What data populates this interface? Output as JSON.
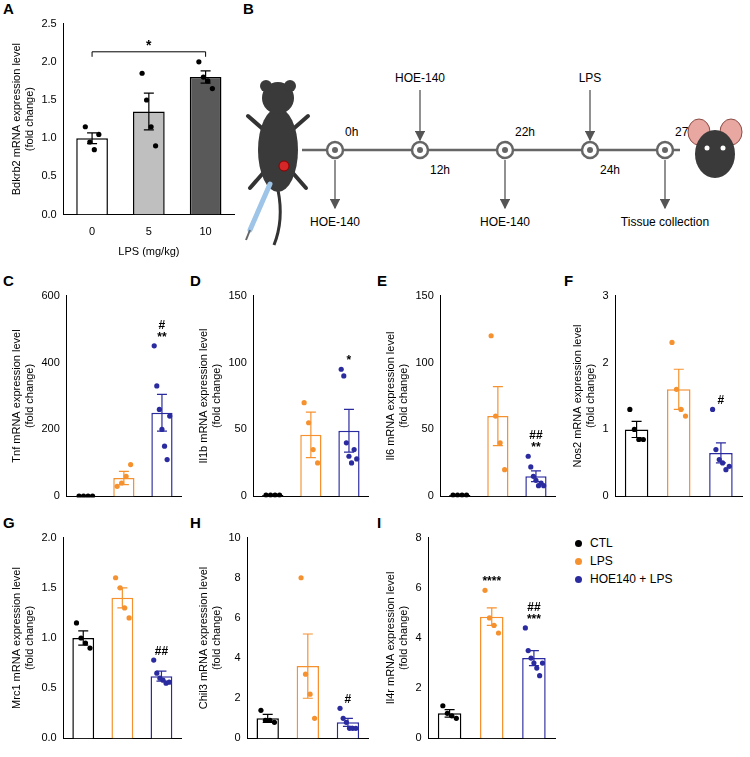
{
  "chart_data": [
    {
      "panel": "A",
      "type": "bar",
      "y_label": [
        "Bdkrb2 mRNA expression level",
        "(fold change)"
      ],
      "x_label": "LPS (mg/kg)",
      "categories": [
        "0",
        "5",
        "10"
      ],
      "values": [
        1.0,
        1.35,
        1.8
      ],
      "errors": [
        0.07,
        0.24,
        0.08
      ],
      "points": [
        [
          1.15,
          0.95,
          0.85,
          1.05
        ],
        [
          1.85,
          1.5,
          1.15,
          0.9
        ],
        [
          2.0,
          1.8,
          1.75,
          1.65
        ]
      ],
      "colors": [
        "#ffffff",
        "#bfbfbf",
        "#595959"
      ],
      "color": "#000000",
      "ylim": [
        0,
        2.5
      ],
      "yticks": [
        {
          "value": 0,
          "label": "0.0"
        },
        0.5,
        {
          "value": 1,
          "label": "1.0"
        },
        1.5,
        {
          "value": 2,
          "label": "2.0"
        },
        2.5
      ],
      "comparison": {
        "groups": [
          "0",
          "10"
        ],
        "text": "*"
      }
    },
    {
      "panel": "C",
      "type": "bar",
      "y_label": [
        "Tnf mRNA expression level",
        "(fold change)"
      ],
      "categories": [
        "CTL",
        "LPS",
        "HOE140 + LPS"
      ],
      "values": [
        1,
        55,
        250
      ],
      "errors": [
        0.3,
        20,
        55
      ],
      "points": [
        [
          1,
          1,
          1,
          1
        ],
        [
          30,
          40,
          60,
          95
        ],
        [
          450,
          330,
          260,
          200,
          150,
          110,
          240
        ]
      ],
      "colors": [
        "#000000",
        "#f5922f",
        "#2b2ba0"
      ],
      "ylim": [
        0,
        600
      ],
      "yticks": [
        0,
        200,
        400,
        600
      ],
      "tick_labels": "y",
      "annotations": [
        {
          "category": "HOE140 + LPS",
          "text": [
            "#",
            "**"
          ]
        }
      ]
    },
    {
      "panel": "D",
      "type": "bar",
      "y_label": [
        "Il1b mRNA expression level",
        "(fold change)"
      ],
      "categories": [
        "CTL",
        "LPS",
        "HOE140 + LPS"
      ],
      "values": [
        1,
        46,
        49
      ],
      "errors": [
        0.2,
        17,
        16
      ],
      "points": [
        [
          1,
          1,
          1,
          1
        ],
        [
          70,
          55,
          35,
          25
        ],
        [
          95,
          90,
          40,
          30,
          25,
          35,
          28
        ]
      ],
      "colors": [
        "#000000",
        "#f5922f",
        "#2b2ba0"
      ],
      "ylim": [
        0,
        150
      ],
      "yticks": [
        0,
        50,
        100,
        150
      ],
      "tick_labels": "y",
      "annotations": [
        {
          "category": "HOE140 + LPS",
          "text": [
            "*"
          ]
        }
      ]
    },
    {
      "panel": "E",
      "type": "bar",
      "y_label": [
        "Il6 mRNA expression level",
        "(fold change)"
      ],
      "categories": [
        "CTL",
        "LPS",
        "HOE140 + LPS"
      ],
      "values": [
        1,
        60,
        15
      ],
      "errors": [
        0.2,
        22,
        4
      ],
      "points": [
        [
          1,
          1,
          1,
          1
        ],
        [
          120,
          60,
          40,
          20
        ],
        [
          30,
          22,
          15,
          12,
          8,
          10,
          8
        ]
      ],
      "colors": [
        "#000000",
        "#f5922f",
        "#2b2ba0"
      ],
      "ylim": [
        0,
        150
      ],
      "yticks": [
        0,
        50,
        100,
        150
      ],
      "tick_labels": "y",
      "annotations": [
        {
          "category": "HOE140 + LPS",
          "text": [
            "##",
            "**"
          ]
        }
      ]
    },
    {
      "panel": "F",
      "type": "bar",
      "y_label": [
        "Nos2 mRNA expression level",
        "(fold change)"
      ],
      "categories": [
        "CTL",
        "LPS",
        "HOE140 + LPS"
      ],
      "values": [
        1.0,
        1.6,
        0.65
      ],
      "errors": [
        0.12,
        0.3,
        0.15
      ],
      "points": [
        [
          1.3,
          1.0,
          0.85,
          0.85
        ],
        [
          2.3,
          1.6,
          1.3,
          1.2
        ],
        [
          1.3,
          0.7,
          0.55,
          0.5,
          0.4,
          0.45
        ]
      ],
      "colors": [
        "#000000",
        "#f5922f",
        "#2b2ba0"
      ],
      "ylim": [
        0,
        3
      ],
      "yticks": [
        0,
        1,
        2,
        3
      ],
      "tick_labels": "y",
      "annotations": [
        {
          "category": "HOE140 + LPS",
          "text": [
            "#"
          ]
        }
      ]
    },
    {
      "panel": "G",
      "type": "bar",
      "y_label": [
        "Mrc1 mRNA expression level",
        "(fold change)"
      ],
      "categories": [
        "CTL",
        "LPS",
        "HOE140 + LPS"
      ],
      "values": [
        1.0,
        1.4,
        0.62
      ],
      "errors": [
        0.07,
        0.1,
        0.05
      ],
      "points": [
        [
          1.15,
          1.0,
          0.95,
          0.9
        ],
        [
          1.6,
          1.5,
          1.3,
          1.2
        ],
        [
          0.78,
          0.65,
          0.6,
          0.58,
          0.55,
          0.56
        ]
      ],
      "colors": [
        "#000000",
        "#f5922f",
        "#2b2ba0"
      ],
      "ylim": [
        0,
        2
      ],
      "yticks": [
        {
          "value": 0,
          "label": "0.0"
        },
        0.5,
        {
          "value": 1,
          "label": "1.0"
        },
        1.5,
        {
          "value": 2,
          "label": "2.0"
        }
      ],
      "tick_labels": "y",
      "annotations": [
        {
          "category": "HOE140 + LPS",
          "text": [
            "##"
          ]
        }
      ]
    },
    {
      "panel": "H",
      "type": "bar",
      "y_label": [
        "Chil3 mRNA expression level",
        "(fold change)"
      ],
      "categories": [
        "CTL",
        "LPS",
        "HOE140 + LPS"
      ],
      "values": [
        1.0,
        3.6,
        0.8
      ],
      "errors": [
        0.2,
        1.6,
        0.2
      ],
      "points": [
        [
          1.4,
          0.9,
          0.9,
          0.8
        ],
        [
          8.0,
          3.2,
          2.2,
          1.0
        ],
        [
          1.5,
          1.0,
          0.8,
          0.5,
          0.5,
          0.5
        ]
      ],
      "colors": [
        "#000000",
        "#f5922f",
        "#2b2ba0"
      ],
      "ylim": [
        0,
        10
      ],
      "yticks": [
        0,
        2,
        4,
        6,
        8,
        10
      ],
      "tick_labels": "y",
      "annotations": [
        {
          "category": "HOE140 + LPS",
          "text": [
            "#"
          ]
        }
      ]
    },
    {
      "panel": "I",
      "type": "bar",
      "y_label": [
        "Il4r mRNA expression level",
        "(fold change)"
      ],
      "categories": [
        "CTL",
        "LPS",
        "HOE140 + LPS"
      ],
      "values": [
        1.0,
        4.85,
        3.2
      ],
      "errors": [
        0.15,
        0.35,
        0.3
      ],
      "points": [
        [
          1.3,
          1.0,
          0.9,
          0.8
        ],
        [
          5.9,
          4.8,
          4.5,
          4.2
        ],
        [
          4.4,
          3.5,
          3.2,
          3.0,
          2.8,
          2.5,
          3.0
        ]
      ],
      "colors": [
        "#000000",
        "#f5922f",
        "#2b2ba0"
      ],
      "ylim": [
        0,
        8
      ],
      "yticks": [
        0,
        2,
        4,
        6,
        8
      ],
      "tick_labels": "y",
      "legend": "right",
      "annotations": [
        {
          "category": "LPS",
          "text": [
            "****"
          ]
        },
        {
          "category": "HOE140 + LPS",
          "text": [
            "##",
            "***"
          ]
        }
      ]
    }
  ],
  "diagram": {
    "panel": "B",
    "timeline": [
      {
        "time": "0h",
        "event": "HOE-140"
      },
      {
        "time": "12h",
        "event": "HOE-140"
      },
      {
        "time": "22h",
        "event": "HOE-140"
      },
      {
        "time": "24h",
        "event": "LPS"
      },
      {
        "time": "27h",
        "event": "Tissue collection"
      }
    ]
  }
}
